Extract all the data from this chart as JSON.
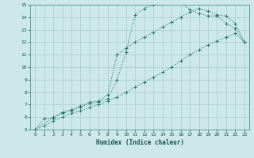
{
  "xlabel": "Humidex (Indice chaleur)",
  "bg_color": "#cce8e8",
  "grid_color": "#aacccc",
  "line_color": "#1a7060",
  "xlim": [
    -0.5,
    23.5
  ],
  "ylim": [
    5,
    15
  ],
  "xticks": [
    0,
    1,
    2,
    3,
    4,
    5,
    6,
    7,
    8,
    9,
    10,
    11,
    12,
    13,
    14,
    15,
    16,
    17,
    18,
    19,
    20,
    21,
    22,
    23
  ],
  "yticks": [
    5,
    6,
    7,
    8,
    9,
    10,
    11,
    12,
    13,
    14,
    15
  ],
  "line1_x": [
    0,
    1,
    2,
    3,
    4,
    5,
    6,
    7,
    8,
    9,
    10,
    11,
    12,
    13,
    14,
    15,
    16,
    17,
    18,
    19,
    20,
    21,
    22,
    23
  ],
  "line1_y": [
    5.0,
    5.9,
    5.9,
    6.3,
    6.5,
    6.8,
    7.1,
    7.2,
    7.5,
    9.0,
    11.2,
    14.2,
    14.7,
    15.0,
    15.1,
    15.2,
    15.2,
    14.6,
    14.3,
    14.1,
    14.1,
    13.5,
    13.1,
    12.0
  ],
  "line2_x": [
    0,
    2,
    3,
    4,
    5,
    6,
    7,
    8,
    9,
    10,
    11,
    12,
    13,
    14,
    15,
    16,
    17,
    18,
    19,
    20,
    21,
    22,
    23
  ],
  "line2_y": [
    5.0,
    6.0,
    6.4,
    6.6,
    6.9,
    7.2,
    7.3,
    7.8,
    11.0,
    11.5,
    12.0,
    12.4,
    12.8,
    13.2,
    13.6,
    14.0,
    14.4,
    14.7,
    14.5,
    14.2,
    14.1,
    13.5,
    12.0
  ],
  "line3_x": [
    0,
    1,
    2,
    3,
    4,
    5,
    6,
    7,
    8,
    9,
    10,
    11,
    12,
    13,
    14,
    15,
    16,
    17,
    18,
    19,
    20,
    21,
    22,
    23
  ],
  "line3_y": [
    5.0,
    5.3,
    5.7,
    6.0,
    6.3,
    6.5,
    6.8,
    7.0,
    7.3,
    7.6,
    8.0,
    8.4,
    8.8,
    9.2,
    9.6,
    10.0,
    10.5,
    11.0,
    11.4,
    11.8,
    12.1,
    12.4,
    12.7,
    12.0
  ]
}
